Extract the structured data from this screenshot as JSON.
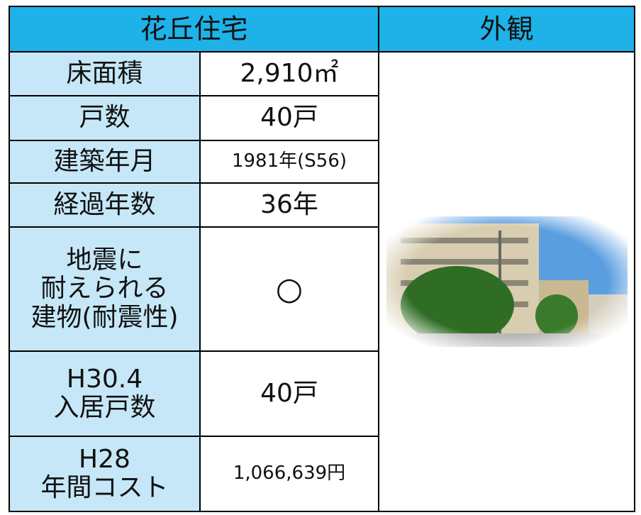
{
  "header": {
    "title": "花丘住宅",
    "photo_label": "外観"
  },
  "rows": [
    [
      "床面積",
      "2,910㎡"
    ],
    [
      "戸数",
      "40戸"
    ],
    [
      "建築年月",
      "1981年(S56)"
    ],
    [
      "経過年数",
      "36年"
    ],
    [
      "地震に\n耐えられる\n建物(耐震性)",
      "○"
    ],
    [
      "H30.4\n入居戸数",
      "40戸"
    ],
    [
      "H28\n年間コスト",
      "1,066,639円"
    ]
  ]
}
